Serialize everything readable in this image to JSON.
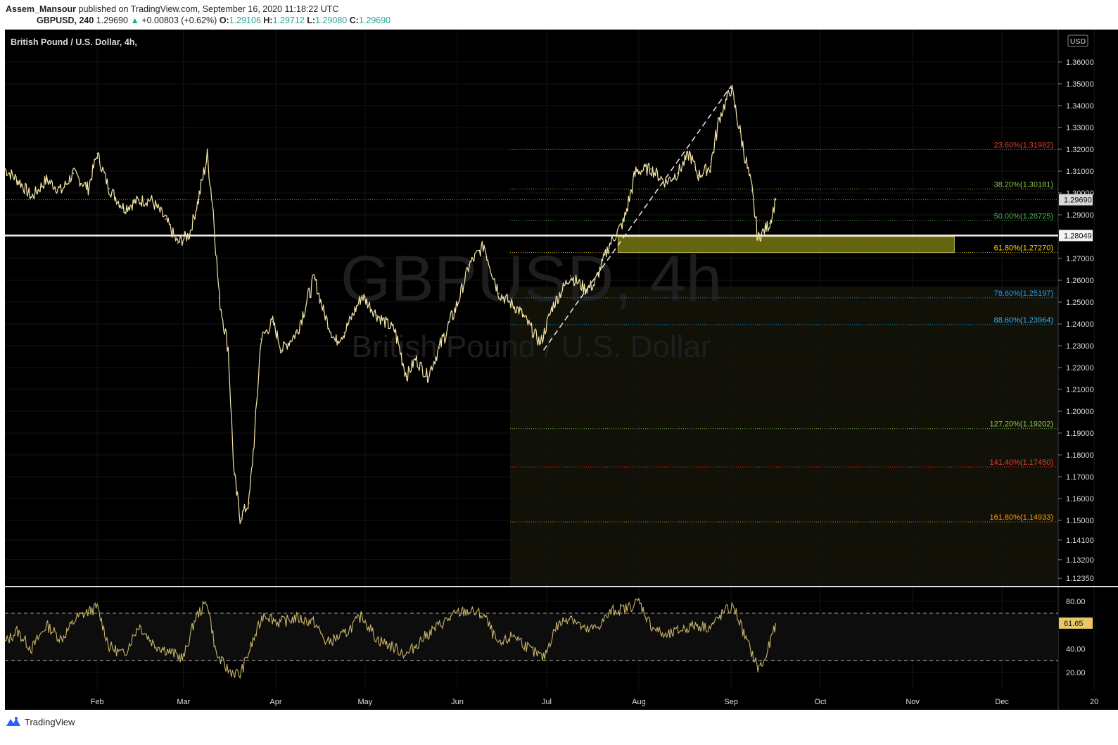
{
  "header": {
    "author": "Assem_Mansour",
    "published_text": "published on TradingView.com, September 16, 2020 11:18:22 UTC",
    "symbol": "GBPUSD",
    "interval": "240",
    "last": "1.29690",
    "change_arrow": "▲",
    "change": "+0.00803 (+0.62%)",
    "open_label": "O:",
    "open": "1.29106",
    "high_label": "H:",
    "high": "1.29712",
    "low_label": "L:",
    "low": "1.29080",
    "close_label": "C:",
    "close": "1.29690"
  },
  "chart": {
    "legend": "British Pound / U.S. Dollar, 4h,",
    "watermark_symbol": "GBPUSD, 4h",
    "watermark_name": "British Pound / U.S. Dollar",
    "currency": "USD",
    "price_tag": "1.29690",
    "line_tag": "1.28049",
    "rsi_tag": "61.65"
  },
  "chart_data": {
    "type": "line",
    "title": "British Pound / U.S. Dollar, 4h,",
    "xlabel": "",
    "ylabel": "",
    "x_ticks": [
      "Feb",
      "Mar",
      "Apr",
      "May",
      "Jun",
      "Jul",
      "Aug",
      "Sep",
      "Oct",
      "Nov",
      "Dec",
      "20"
    ],
    "y_ticks": [
      "1.36000",
      "1.35000",
      "1.34000",
      "1.33000",
      "1.32000",
      "1.31000",
      "1.30000",
      "1.29000",
      "1.27000",
      "1.26000",
      "1.25000",
      "1.24000",
      "1.23000",
      "1.22000",
      "1.21000",
      "1.20000",
      "1.19000",
      "1.18000",
      "1.17000",
      "1.16000",
      "1.15000",
      "1.14100",
      "1.13200",
      "1.12350"
    ],
    "ylim": [
      1.1235,
      1.368
    ],
    "series": [
      {
        "values": [
          [
            "2020-01-01",
            1.311
          ],
          [
            "2020-01-06",
            1.305
          ],
          [
            "2020-01-10",
            1.298
          ],
          [
            "2020-01-15",
            1.306
          ],
          [
            "2020-01-20",
            1.301
          ],
          [
            "2020-01-24",
            1.309
          ],
          [
            "2020-01-29",
            1.302
          ],
          [
            "2020-02-01",
            1.318
          ],
          [
            "2020-02-05",
            1.302
          ],
          [
            "2020-02-10",
            1.293
          ],
          [
            "2020-02-14",
            1.296
          ],
          [
            "2020-02-19",
            1.297
          ],
          [
            "2020-02-24",
            1.288
          ],
          [
            "2020-02-28",
            1.277
          ],
          [
            "2020-03-03",
            1.281
          ],
          [
            "2020-03-06",
            1.297
          ],
          [
            "2020-03-09",
            1.317
          ],
          [
            "2020-03-11",
            1.292
          ],
          [
            "2020-03-13",
            1.252
          ],
          [
            "2020-03-16",
            1.229
          ],
          [
            "2020-03-18",
            1.171
          ],
          [
            "2020-03-20",
            1.151
          ],
          [
            "2020-03-23",
            1.158
          ],
          [
            "2020-03-25",
            1.191
          ],
          [
            "2020-03-27",
            1.233
          ],
          [
            "2020-03-31",
            1.241
          ],
          [
            "2020-04-03",
            1.228
          ],
          [
            "2020-04-08",
            1.236
          ],
          [
            "2020-04-14",
            1.261
          ],
          [
            "2020-04-17",
            1.246
          ],
          [
            "2020-04-21",
            1.232
          ],
          [
            "2020-04-24",
            1.236
          ],
          [
            "2020-04-30",
            1.253
          ],
          [
            "2020-05-05",
            1.244
          ],
          [
            "2020-05-11",
            1.237
          ],
          [
            "2020-05-15",
            1.216
          ],
          [
            "2020-05-18",
            1.224
          ],
          [
            "2020-05-22",
            1.216
          ],
          [
            "2020-05-26",
            1.229
          ],
          [
            "2020-06-01",
            1.249
          ],
          [
            "2020-06-05",
            1.267
          ],
          [
            "2020-06-10",
            1.276
          ],
          [
            "2020-06-15",
            1.254
          ],
          [
            "2020-06-22",
            1.246
          ],
          [
            "2020-06-29",
            1.231
          ],
          [
            "2020-07-03",
            1.248
          ],
          [
            "2020-07-09",
            1.262
          ],
          [
            "2020-07-14",
            1.256
          ],
          [
            "2020-07-17",
            1.258
          ],
          [
            "2020-07-22",
            1.276
          ],
          [
            "2020-07-27",
            1.287
          ],
          [
            "2020-07-31",
            1.31
          ],
          [
            "2020-08-05",
            1.311
          ],
          [
            "2020-08-10",
            1.305
          ],
          [
            "2020-08-14",
            1.309
          ],
          [
            "2020-08-18",
            1.318
          ],
          [
            "2020-08-21",
            1.308
          ],
          [
            "2020-08-25",
            1.312
          ],
          [
            "2020-08-28",
            1.334
          ],
          [
            "2020-09-01",
            1.348
          ],
          [
            "2020-09-04",
            1.328
          ],
          [
            "2020-09-08",
            1.301
          ],
          [
            "2020-09-10",
            1.279
          ],
          [
            "2020-09-11",
            1.281
          ],
          [
            "2020-09-14",
            1.286
          ],
          [
            "2020-09-16",
            1.2969
          ]
        ]
      }
    ],
    "fibonacci": {
      "levels": [
        {
          "label": "23.60%(1.31982)",
          "value": 1.31982,
          "color": "#e53935"
        },
        {
          "label": "38.20%(1.30181)",
          "value": 1.30181,
          "color": "#8bc34a"
        },
        {
          "label": "50.00%(1.28725)",
          "value": 1.28725,
          "color": "#4caf50"
        },
        {
          "label": "61.80%(1.27270)",
          "value": 1.2727,
          "color": "#ffd600"
        },
        {
          "label": "78.60%(1.25197)",
          "value": 1.25197,
          "color": "#2196f3"
        },
        {
          "label": "88.60%(1.23964)",
          "value": 1.23964,
          "color": "#29b6f6"
        },
        {
          "label": "127.20%(1.19202)",
          "value": 1.19202,
          "color": "#8bc34a"
        },
        {
          "label": "141.40%(1.17450)",
          "value": 1.1745,
          "color": "#e53935"
        },
        {
          "label": "161.80%(1.14933)",
          "value": 1.14933,
          "color": "#ff9800"
        }
      ]
    },
    "horizontal_line": 1.28049,
    "current_price_line": 1.2969,
    "zone": {
      "from": "2020-07-25",
      "to": "2020-11-15",
      "low": 1.2727,
      "high": 1.28,
      "color": "#6b6b10"
    },
    "rsi": {
      "y_ticks": [
        "80.00",
        "40.00",
        "20.00"
      ],
      "bands": [
        70,
        30
      ],
      "last": 61.65,
      "values": [
        [
          "2020-01-01",
          45
        ],
        [
          "2020-01-05",
          55
        ],
        [
          "2020-01-10",
          40
        ],
        [
          "2020-01-15",
          60
        ],
        [
          "2020-01-20",
          48
        ],
        [
          "2020-01-25",
          66
        ],
        [
          "2020-02-01",
          75
        ],
        [
          "2020-02-05",
          42
        ],
        [
          "2020-02-10",
          35
        ],
        [
          "2020-02-15",
          60
        ],
        [
          "2020-02-20",
          44
        ],
        [
          "2020-02-25",
          38
        ],
        [
          "2020-03-01",
          32
        ],
        [
          "2020-03-05",
          66
        ],
        [
          "2020-03-09",
          80
        ],
        [
          "2020-03-12",
          35
        ],
        [
          "2020-03-16",
          22
        ],
        [
          "2020-03-20",
          18
        ],
        [
          "2020-03-24",
          44
        ],
        [
          "2020-03-28",
          70
        ],
        [
          "2020-04-02",
          62
        ],
        [
          "2020-04-08",
          66
        ],
        [
          "2020-04-14",
          62
        ],
        [
          "2020-04-18",
          45
        ],
        [
          "2020-04-24",
          52
        ],
        [
          "2020-04-30",
          68
        ],
        [
          "2020-05-05",
          48
        ],
        [
          "2020-05-10",
          42
        ],
        [
          "2020-05-15",
          35
        ],
        [
          "2020-05-20",
          48
        ],
        [
          "2020-05-26",
          60
        ],
        [
          "2020-06-01",
          70
        ],
        [
          "2020-06-05",
          72
        ],
        [
          "2020-06-10",
          68
        ],
        [
          "2020-06-15",
          42
        ],
        [
          "2020-06-20",
          52
        ],
        [
          "2020-06-26",
          38
        ],
        [
          "2020-06-30",
          32
        ],
        [
          "2020-07-04",
          58
        ],
        [
          "2020-07-09",
          68
        ],
        [
          "2020-07-14",
          55
        ],
        [
          "2020-07-18",
          58
        ],
        [
          "2020-07-23",
          72
        ],
        [
          "2020-07-28",
          74
        ],
        [
          "2020-08-01",
          80
        ],
        [
          "2020-08-05",
          60
        ],
        [
          "2020-08-10",
          50
        ],
        [
          "2020-08-15",
          56
        ],
        [
          "2020-08-20",
          60
        ],
        [
          "2020-08-25",
          58
        ],
        [
          "2020-08-30",
          72
        ],
        [
          "2020-09-02",
          75
        ],
        [
          "2020-09-06",
          48
        ],
        [
          "2020-09-10",
          24
        ],
        [
          "2020-09-12",
          28
        ],
        [
          "2020-09-14",
          44
        ],
        [
          "2020-09-16",
          61.65
        ]
      ]
    }
  },
  "footer": {
    "brand": "TradingView"
  }
}
